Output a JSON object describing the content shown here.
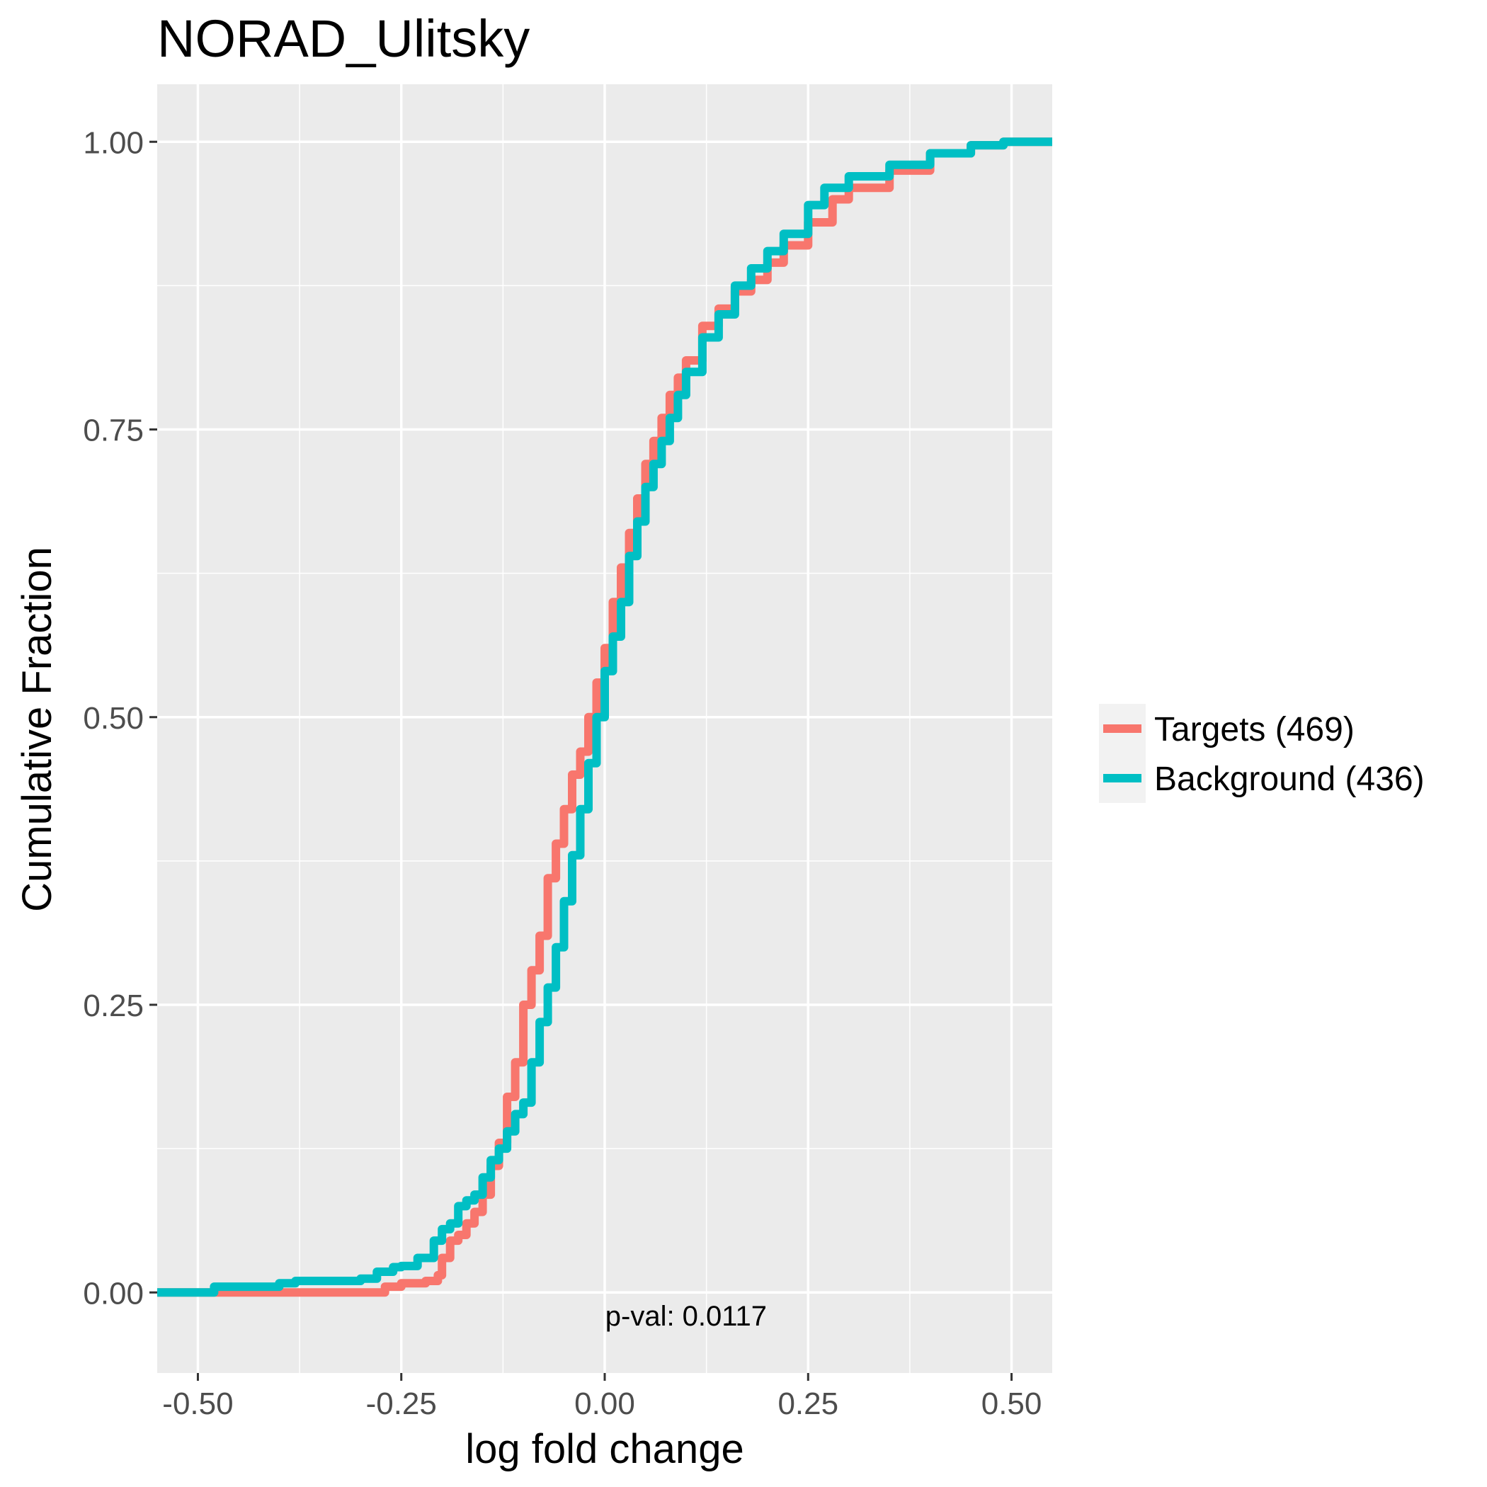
{
  "chart_data": {
    "type": "line",
    "title": "NORAD_Ulitsky",
    "xlabel": "log fold change",
    "ylabel": "Cumulative Fraction",
    "xlim": [
      -0.55,
      0.55
    ],
    "ylim": [
      -0.07,
      1.05
    ],
    "x_ticks": [
      -0.5,
      -0.25,
      0.0,
      0.25,
      0.5
    ],
    "x_tick_labels": [
      "-0.50",
      "-0.25",
      "0.00",
      "0.25",
      "0.50"
    ],
    "x_minor": [
      -0.375,
      -0.125,
      0.125,
      0.375
    ],
    "y_ticks": [
      0.0,
      0.25,
      0.5,
      0.75,
      1.0
    ],
    "y_tick_labels": [
      "0.00",
      "0.25",
      "0.50",
      "0.75",
      "1.00"
    ],
    "y_minor": [
      0.125,
      0.375,
      0.625,
      0.875
    ],
    "grid": true,
    "legend_position": "right",
    "annotation": {
      "text": "p-val:  0.0117",
      "x": 0.1,
      "y": -0.02
    },
    "series": [
      {
        "name": "Targets (469)",
        "color": "#F8766D",
        "x": [
          -0.55,
          -0.5,
          -0.3,
          -0.27,
          -0.25,
          -0.22,
          -0.205,
          -0.2,
          -0.19,
          -0.18,
          -0.17,
          -0.16,
          -0.15,
          -0.14,
          -0.13,
          -0.12,
          -0.11,
          -0.1,
          -0.09,
          -0.08,
          -0.07,
          -0.06,
          -0.05,
          -0.04,
          -0.03,
          -0.02,
          -0.01,
          0.0,
          0.01,
          0.02,
          0.03,
          0.04,
          0.05,
          0.06,
          0.07,
          0.08,
          0.09,
          0.1,
          0.12,
          0.14,
          0.16,
          0.18,
          0.2,
          0.22,
          0.25,
          0.28,
          0.3,
          0.35,
          0.4,
          0.45,
          0.49,
          0.5,
          0.55
        ],
        "y": [
          0.0,
          0.0,
          0.0,
          0.005,
          0.008,
          0.01,
          0.015,
          0.03,
          0.045,
          0.05,
          0.06,
          0.07,
          0.085,
          0.11,
          0.13,
          0.17,
          0.2,
          0.25,
          0.28,
          0.31,
          0.36,
          0.39,
          0.42,
          0.45,
          0.47,
          0.5,
          0.53,
          0.56,
          0.6,
          0.63,
          0.66,
          0.69,
          0.72,
          0.74,
          0.76,
          0.78,
          0.795,
          0.81,
          0.84,
          0.855,
          0.87,
          0.88,
          0.895,
          0.91,
          0.93,
          0.95,
          0.96,
          0.975,
          0.99,
          0.997,
          1.0,
          1.0,
          1.0
        ]
      },
      {
        "name": "Background (436)",
        "color": "#00BFC4",
        "x": [
          -0.55,
          -0.5,
          -0.48,
          -0.4,
          -0.38,
          -0.3,
          -0.28,
          -0.26,
          -0.25,
          -0.23,
          -0.21,
          -0.2,
          -0.19,
          -0.18,
          -0.17,
          -0.16,
          -0.15,
          -0.14,
          -0.13,
          -0.12,
          -0.11,
          -0.1,
          -0.09,
          -0.08,
          -0.07,
          -0.06,
          -0.05,
          -0.04,
          -0.03,
          -0.02,
          -0.01,
          0.0,
          0.01,
          0.02,
          0.03,
          0.04,
          0.05,
          0.06,
          0.07,
          0.08,
          0.09,
          0.1,
          0.12,
          0.14,
          0.16,
          0.18,
          0.2,
          0.22,
          0.25,
          0.27,
          0.3,
          0.35,
          0.4,
          0.45,
          0.49,
          0.55
        ],
        "y": [
          0.0,
          0.0,
          0.005,
          0.008,
          0.01,
          0.012,
          0.018,
          0.022,
          0.023,
          0.03,
          0.045,
          0.055,
          0.06,
          0.075,
          0.08,
          0.085,
          0.1,
          0.115,
          0.125,
          0.14,
          0.155,
          0.165,
          0.2,
          0.235,
          0.265,
          0.3,
          0.34,
          0.38,
          0.42,
          0.46,
          0.5,
          0.54,
          0.57,
          0.6,
          0.64,
          0.67,
          0.7,
          0.72,
          0.74,
          0.76,
          0.78,
          0.8,
          0.83,
          0.85,
          0.875,
          0.89,
          0.905,
          0.92,
          0.945,
          0.96,
          0.97,
          0.98,
          0.99,
          0.997,
          1.0,
          1.0
        ]
      }
    ]
  }
}
